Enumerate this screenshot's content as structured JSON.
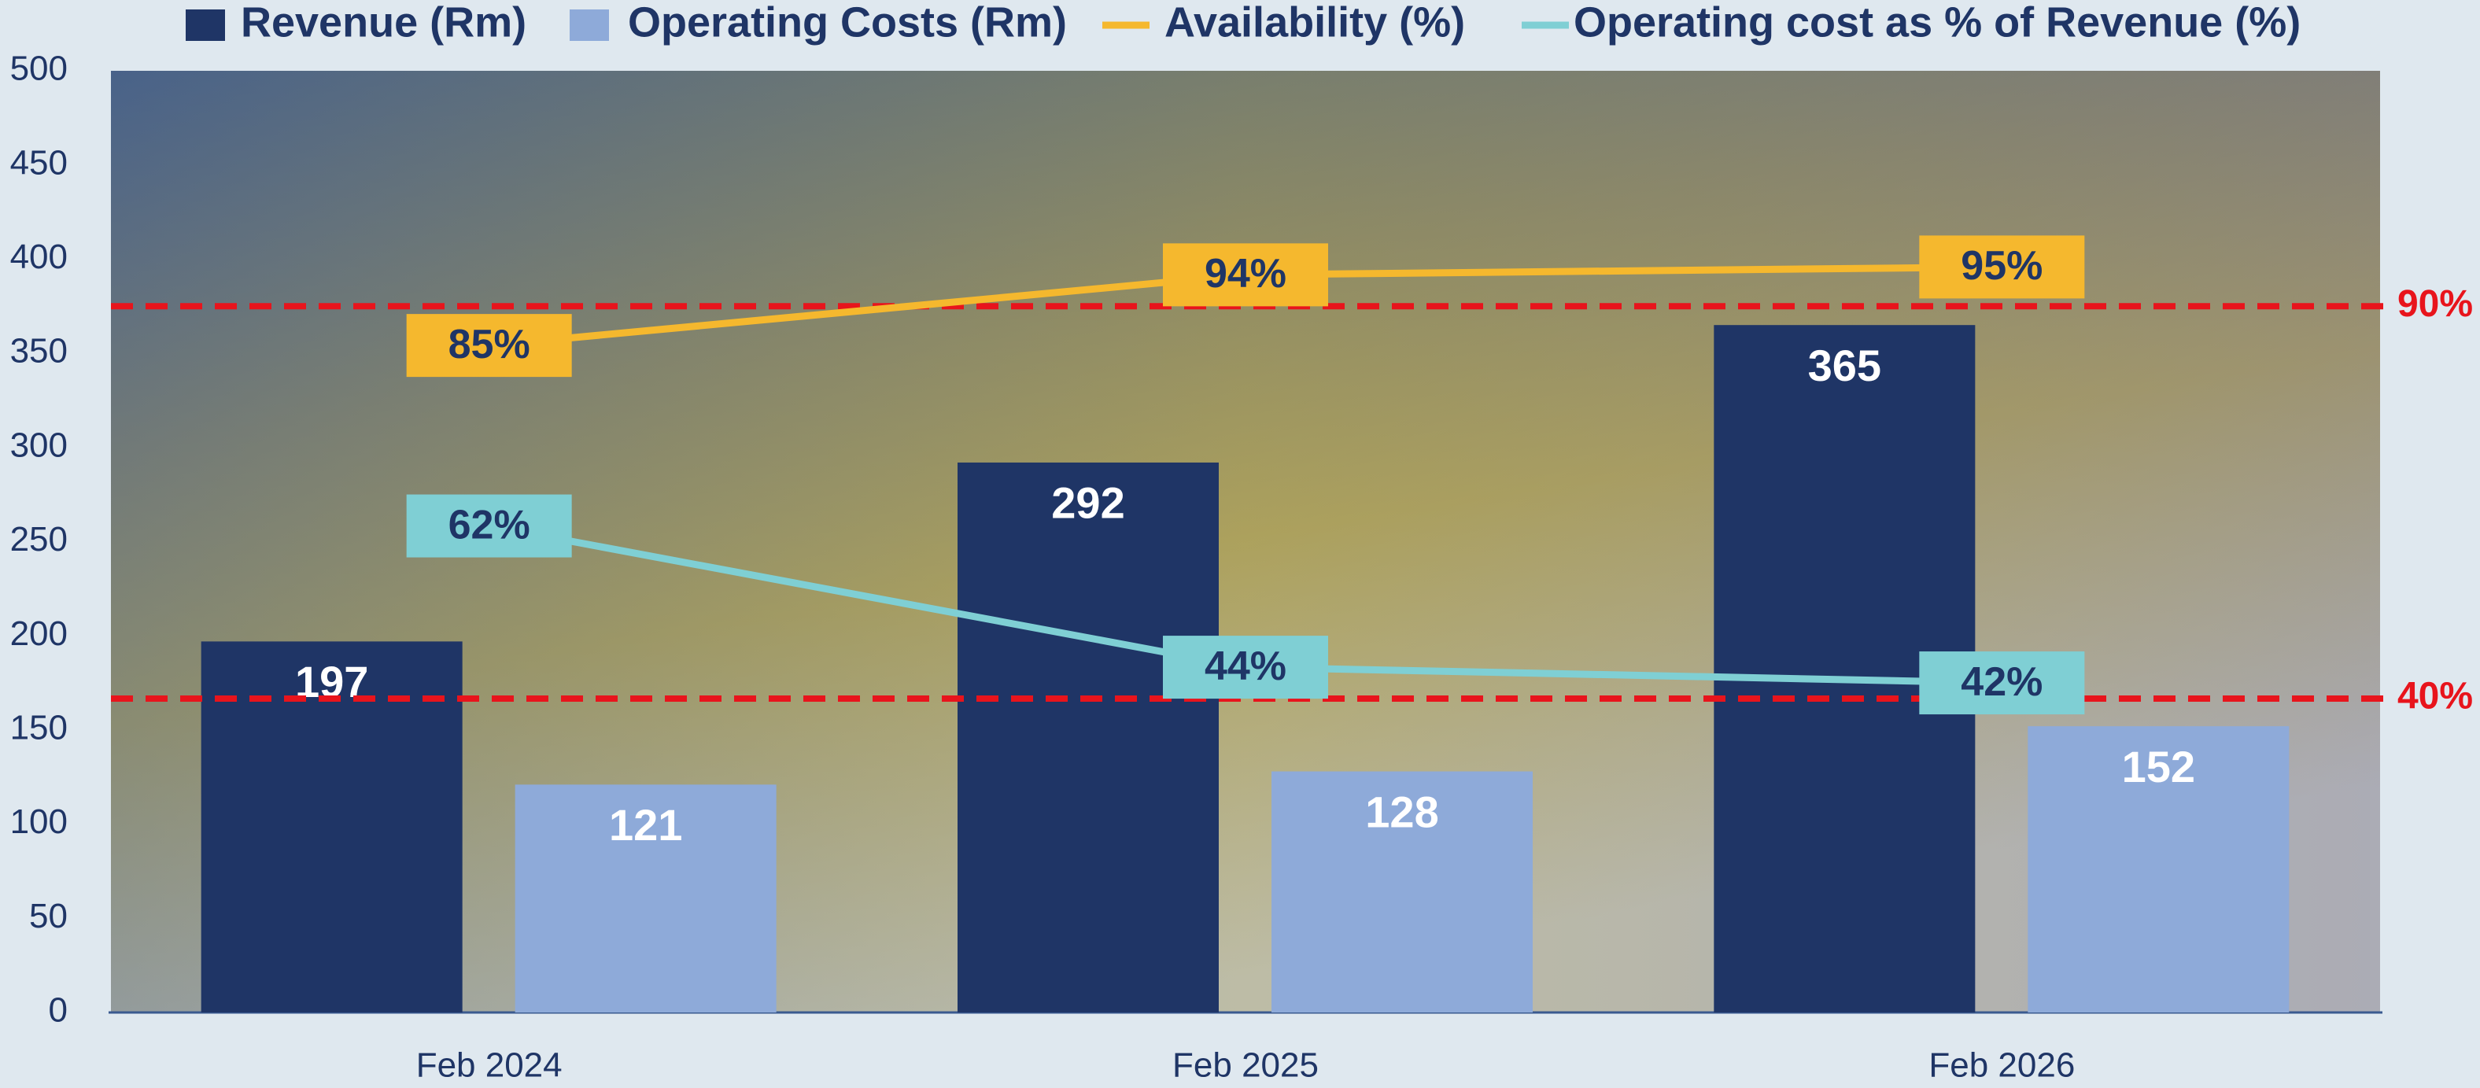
{
  "chart_data": {
    "type": "bar",
    "categories": [
      "Feb 2024",
      "Feb 2025",
      "Feb 2026"
    ],
    "series": [
      {
        "name": "Revenue (Rm)",
        "type": "bar",
        "color": "#1f3566",
        "values": [
          197,
          292,
          365
        ]
      },
      {
        "name": "Operating Costs (Rm)",
        "type": "bar",
        "color": "#8eaad9",
        "values": [
          121,
          128,
          152
        ]
      },
      {
        "name": "Availability (%)",
        "type": "line",
        "axis": "y2",
        "color": "#f5b82e",
        "values": [
          85,
          94,
          95
        ],
        "value_labels": [
          "85%",
          "94%",
          "95%"
        ]
      },
      {
        "name": "Operating cost as % of Revenue (%)",
        "type": "line",
        "axis": "y2",
        "color": "#7fcfd4",
        "values": [
          62,
          44,
          42
        ],
        "value_labels": [
          "62%",
          "44%",
          "42%"
        ]
      }
    ],
    "ylim": [
      0,
      500
    ],
    "yticks": [
      0,
      50,
      100,
      150,
      200,
      250,
      300,
      350,
      400,
      450,
      500
    ],
    "y2lim": [
      0,
      120
    ],
    "reference_lines": [
      {
        "value": 90,
        "label": "90%",
        "color": "#e8141c"
      },
      {
        "value": 40,
        "label": "40%",
        "color": "#e8141c"
      }
    ],
    "legend": "top",
    "grid": false
  }
}
